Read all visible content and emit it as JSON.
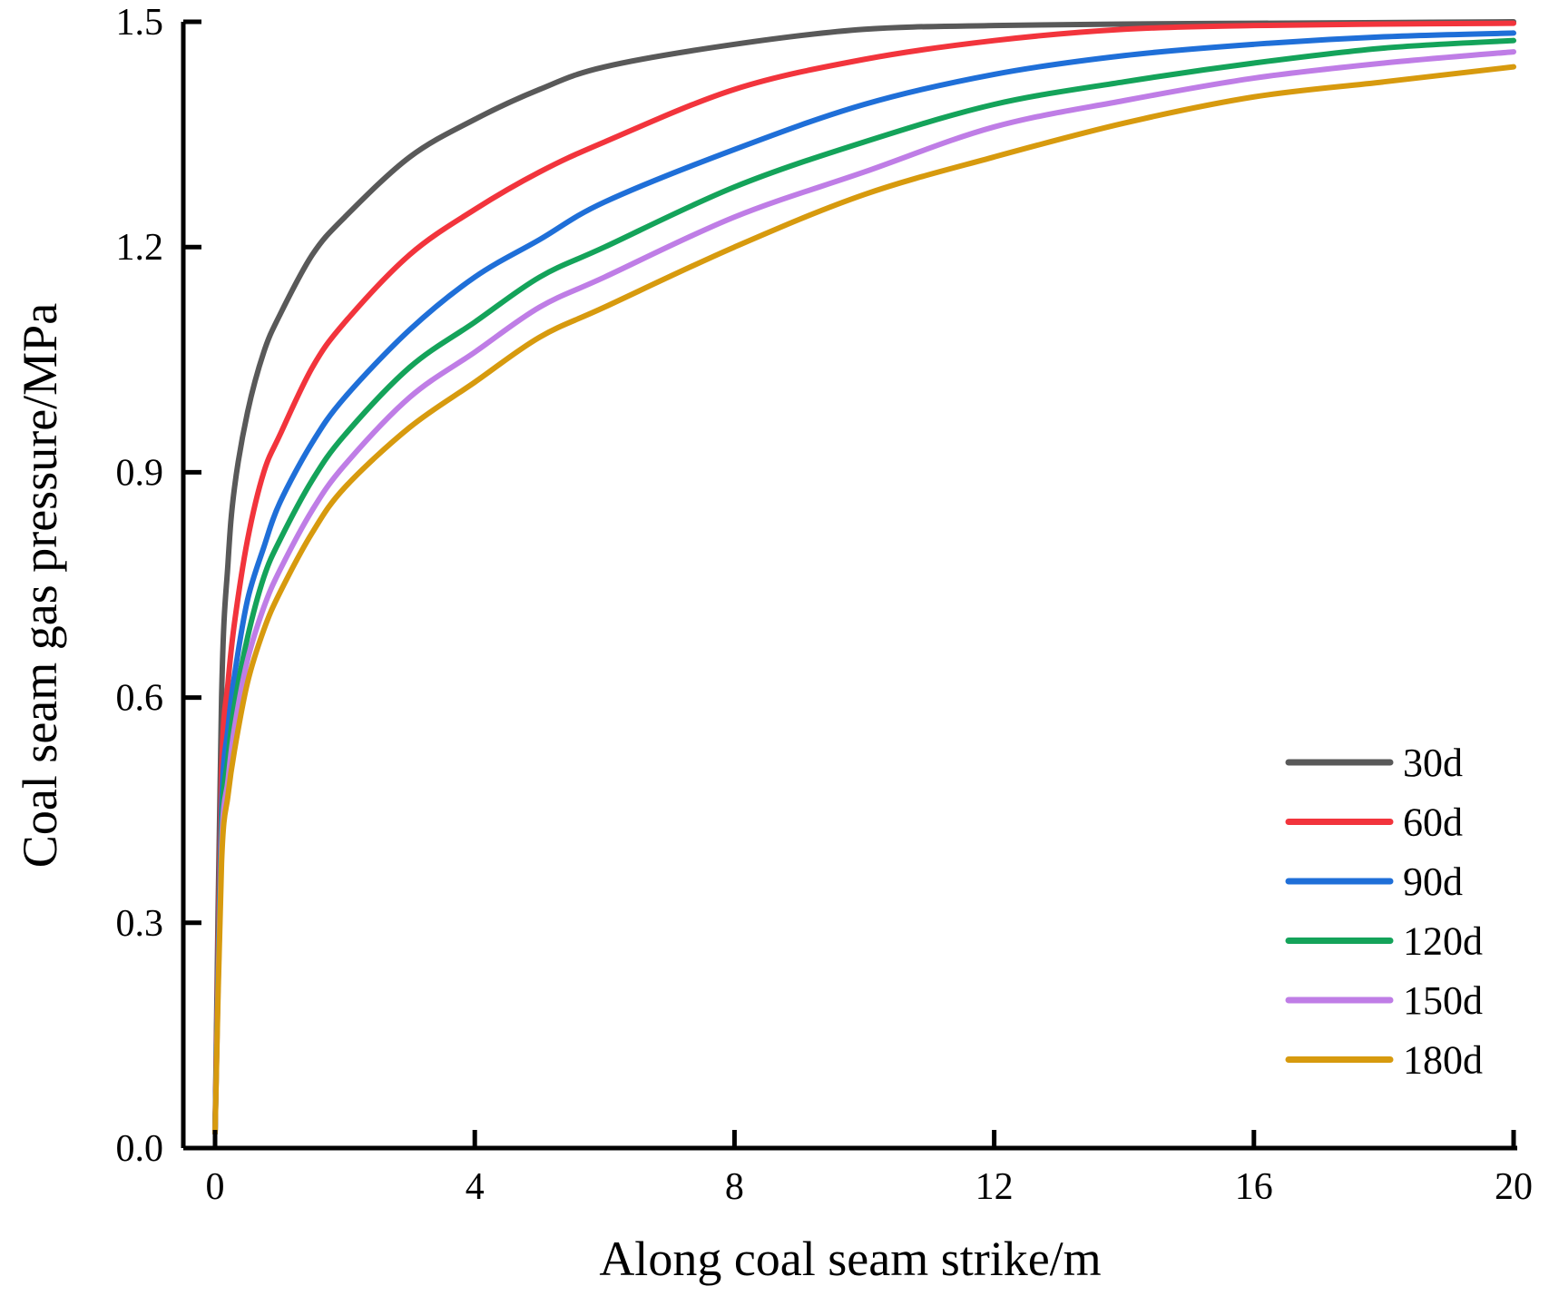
{
  "chart_data": {
    "type": "line",
    "title": "",
    "xlabel": "Along coal seam strike/m",
    "ylabel": "Coal seam gas pressure/MPa",
    "xlim": [
      -0.5,
      20
    ],
    "ylim": [
      0,
      1.5
    ],
    "xticks": [
      0,
      4,
      8,
      12,
      16,
      20
    ],
    "yticks": [
      0.0,
      0.3,
      0.6,
      0.9,
      1.2,
      1.5
    ],
    "xtick_labels": [
      "0",
      "4",
      "8",
      "12",
      "16",
      "20"
    ],
    "ytick_labels": [
      "0.0",
      "0.3",
      "0.6",
      "0.9",
      "1.2",
      "1.5"
    ],
    "grid": false,
    "legend_position": "lower-right",
    "x": [
      0,
      0.1,
      0.2,
      0.3,
      0.5,
      0.75,
      1,
      1.5,
      2,
      3,
      4,
      5,
      6,
      8,
      10,
      12,
      14,
      16,
      18,
      20
    ],
    "series": [
      {
        "name": "30d",
        "color": "#595959",
        "values": [
          0.02,
          0.6,
          0.78,
          0.88,
          0.98,
          1.06,
          1.11,
          1.19,
          1.24,
          1.32,
          1.37,
          1.41,
          1.44,
          1.47,
          1.49,
          1.495,
          1.497,
          1.498,
          1.499,
          1.5
        ]
      },
      {
        "name": "60d",
        "color": "#f2343c",
        "values": [
          0.02,
          0.5,
          0.62,
          0.7,
          0.81,
          0.9,
          0.95,
          1.04,
          1.1,
          1.19,
          1.25,
          1.3,
          1.34,
          1.41,
          1.45,
          1.475,
          1.49,
          1.495,
          1.497,
          1.498
        ]
      },
      {
        "name": "90d",
        "color": "#1f6fd8",
        "values": [
          0.02,
          0.45,
          0.56,
          0.63,
          0.73,
          0.8,
          0.86,
          0.94,
          1.0,
          1.09,
          1.16,
          1.21,
          1.26,
          1.33,
          1.39,
          1.43,
          1.455,
          1.47,
          1.48,
          1.485
        ]
      },
      {
        "name": "120d",
        "color": "#14a35a",
        "values": [
          0.02,
          0.42,
          0.52,
          0.59,
          0.68,
          0.76,
          0.81,
          0.89,
          0.95,
          1.04,
          1.1,
          1.16,
          1.2,
          1.28,
          1.34,
          1.39,
          1.42,
          1.445,
          1.465,
          1.475
        ]
      },
      {
        "name": "150d",
        "color": "#bf7de6",
        "values": [
          0.02,
          0.4,
          0.49,
          0.56,
          0.65,
          0.72,
          0.77,
          0.85,
          0.91,
          1.0,
          1.06,
          1.12,
          1.16,
          1.24,
          1.3,
          1.36,
          1.395,
          1.425,
          1.445,
          1.46
        ]
      },
      {
        "name": "180d",
        "color": "#d79a0e",
        "values": [
          0.02,
          0.38,
          0.47,
          0.53,
          0.62,
          0.69,
          0.74,
          0.82,
          0.88,
          0.96,
          1.02,
          1.08,
          1.12,
          1.2,
          1.27,
          1.32,
          1.365,
          1.4,
          1.42,
          1.44
        ]
      }
    ]
  }
}
